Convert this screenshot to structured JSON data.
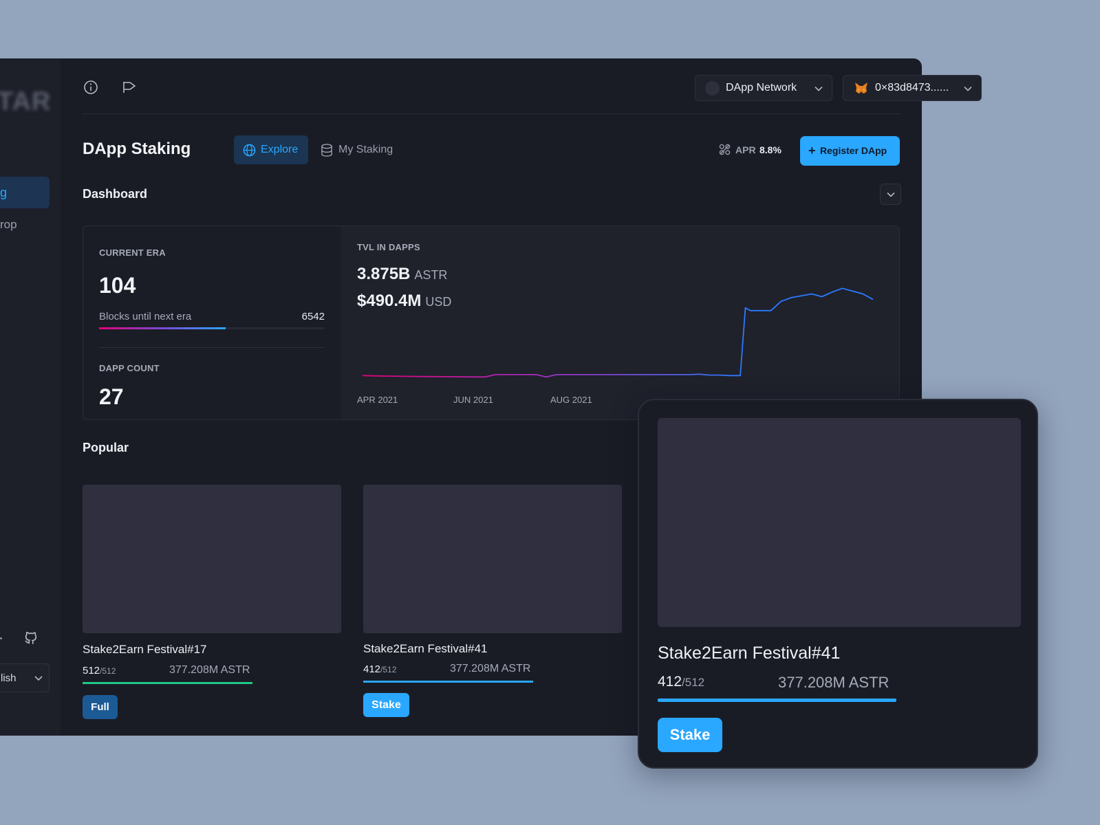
{
  "sidebar": {
    "logo_text": "TAR",
    "active_item_label": "g",
    "item_label": "rop",
    "language_label": "lish"
  },
  "topbar": {
    "network_label": "DApp Network",
    "wallet_label": "0×83d8473......"
  },
  "header": {
    "title": "DApp Staking",
    "tabs": [
      {
        "label": "Explore",
        "active": true
      },
      {
        "label": "My Staking",
        "active": false
      }
    ],
    "apr_label": "APR",
    "apr_value": "8.8%",
    "register_label": "Register DApp"
  },
  "dashboard": {
    "title": "Dashboard",
    "current_era_label": "CURRENT ERA",
    "current_era_value": "104",
    "blocks_label": "Blocks until next era",
    "blocks_value": "6542",
    "era_progress": 0.56,
    "dapp_count_label": "DAPP COUNT",
    "dapp_count_value": "27",
    "tvl_label": "TVL IN DAPPS",
    "tvl_astr": "3.875B",
    "tvl_astr_unit": "ASTR",
    "tvl_usd": "$490.4M",
    "tvl_usd_unit": "USD"
  },
  "chart_data": {
    "type": "line",
    "title": "TVL IN DAPPS",
    "x_ticks": [
      "APR 2021",
      "JUN 2021",
      "AUG 2021"
    ],
    "y_unit": "relative",
    "x": [
      0,
      4,
      8,
      12,
      16,
      20,
      24,
      26,
      28,
      30,
      32,
      34,
      36,
      38,
      40,
      42,
      44,
      46,
      48,
      50,
      52,
      54,
      56,
      58,
      60,
      62,
      64,
      66,
      68,
      70,
      72,
      73,
      74,
      75,
      76,
      78,
      80,
      82,
      84,
      86,
      88,
      90,
      92,
      94,
      96,
      98,
      100
    ],
    "values": [
      0.02,
      0.015,
      0.012,
      0.01,
      0.008,
      0.006,
      0.005,
      0.03,
      0.03,
      0.03,
      0.03,
      0.03,
      0.005,
      0.03,
      0.03,
      0.03,
      0.03,
      0.03,
      0.03,
      0.03,
      0.03,
      0.03,
      0.03,
      0.03,
      0.03,
      0.03,
      0.03,
      0.035,
      0.025,
      0.025,
      0.02,
      0.02,
      0.02,
      0.75,
      0.72,
      0.72,
      0.72,
      0.82,
      0.86,
      0.88,
      0.9,
      0.87,
      0.92,
      0.96,
      0.93,
      0.9,
      0.84
    ],
    "legend": "none",
    "grid": false,
    "line_color_start": "#e6007a",
    "line_color_end": "#2a7bff"
  },
  "popular": {
    "title": "Popular",
    "cards": [
      {
        "name": "Stake2Earn Festival#17",
        "count": "512",
        "max": "/512",
        "amount": "377.208M ASTR",
        "button": "Full",
        "bar_color": "#1ec888"
      },
      {
        "name": "Stake2Earn Festival#41",
        "count": "412",
        "max": "/512",
        "amount": "377.208M ASTR",
        "button": "Stake",
        "bar_color": "#2aa7ff"
      }
    ]
  },
  "zoom_card": {
    "name": "Stake2Earn Festival#41",
    "count": "412",
    "max": "/512",
    "amount": "377.208M ASTR",
    "button": "Stake"
  },
  "colors": {
    "accent": "#2aa7ff",
    "background_outer": "#93a4bd",
    "window_bg": "#1a1c25"
  }
}
